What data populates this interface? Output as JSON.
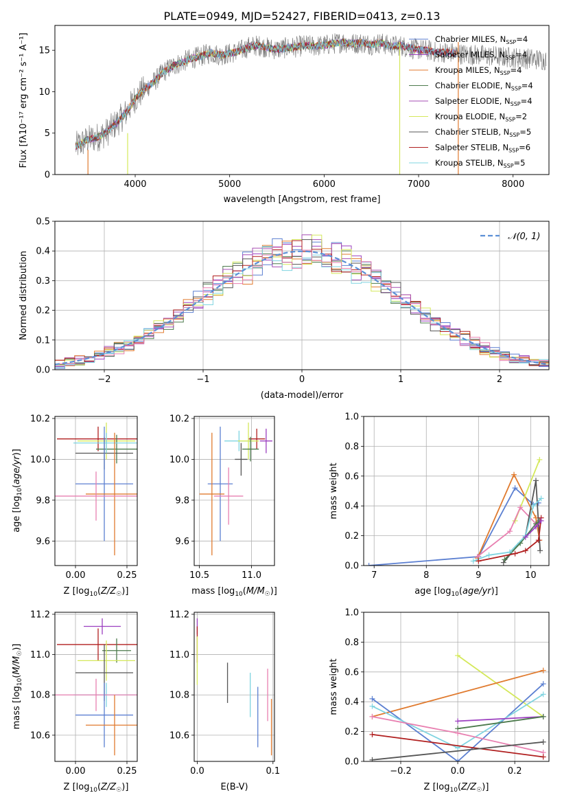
{
  "title": "PLATE=0949, MJD=52427, FIBERID=0413, z=0.13",
  "colors": {
    "chabrier_miles": "#5b7fd1",
    "salpeter_miles": "#9b3fbf",
    "kroupa_miles": "#e07a2e",
    "chabrier_elodie": "#4c7a4c",
    "salpeter_elodie": "#a64cb3",
    "kroupa_elodie": "#d4e85a",
    "chabrier_stelib": "#555555",
    "salpeter_stelib": "#b01e1e",
    "kroupa_stelib": "#7fd4e0",
    "pink": "#e87fb0",
    "gaussian": "#5b8fd6",
    "grid": "#b0b0b0",
    "spectrum": "#808080"
  },
  "chart_data": [
    {
      "id": "spectrum",
      "type": "line",
      "xlabel": "wavelength [Angstrom, rest frame]",
      "ylabel": "Flux [f",
      "ylabel_full": "Flux [fλ10⁻¹⁷ erg cm⁻² s⁻¹ A⁻¹]",
      "xlim": [
        3150,
        8380
      ],
      "ylim": [
        0,
        18
      ],
      "xticks": [
        "4000",
        "5000",
        "6000",
        "7000",
        "8000"
      ],
      "yticks": [
        "0",
        "5",
        "10",
        "15"
      ],
      "legend": [
        "Chabrier MILES, N_SSP=4",
        "Salpeter MILES, N_SSP=4",
        "Kroupa MILES, N_SSP=4",
        "Chabrier ELODIE, N_SSP=4",
        "Salpeter ELODIE, N_SSP=4",
        "Kroupa ELODIE, N_SSP=2",
        "Chabrier STELIB, N_SSP=5",
        "Salpeter STELIB, N_SSP=6",
        "Kroupa STELIB, N_SSP=5"
      ],
      "legend_html": [
        "Chabrier MILES, N<sub>SSP</sub>=4",
        "Salpeter MILES, N<sub>SSP</sub>=4",
        "Kroupa MILES, N<sub>SSP</sub>=4",
        "Chabrier ELODIE, N<sub>SSP</sub>=4",
        "Salpeter ELODIE, N<sub>SSP</sub>=4",
        "Kroupa ELODIE, N<sub>SSP</sub>=2",
        "Chabrier STELIB, N<sub>SSP</sub>=5",
        "Salpeter STELIB, N<sub>SSP</sub>=6",
        "Kroupa STELIB, N<sub>SSP</sub>=5"
      ],
      "continuum": {
        "x": [
          3370,
          3500,
          3600,
          3700,
          3800,
          3900,
          4000,
          4100,
          4200,
          4300,
          4400,
          4500,
          4600,
          4700,
          4800,
          4900,
          5000,
          5100,
          5200,
          5300,
          5400,
          5500,
          5600,
          5700,
          5800,
          5900,
          6000,
          6100,
          6200,
          6300,
          6400,
          6500,
          6600,
          6700,
          6800,
          6900,
          7000,
          7100,
          7200,
          7300,
          7400
        ],
        "y": [
          3.4,
          4.2,
          4.5,
          5.1,
          6.2,
          7.4,
          9.2,
          10.3,
          11.2,
          12.4,
          13.1,
          13.6,
          14.0,
          14.3,
          14.7,
          14.4,
          14.6,
          14.9,
          15.4,
          15.6,
          15.3,
          15.1,
          15.3,
          15.4,
          15.6,
          15.5,
          15.6,
          15.8,
          16.0,
          15.8,
          15.9,
          15.7,
          15.9,
          15.5,
          15.6,
          15.3,
          15.1,
          15.0,
          14.7,
          14.8,
          14.6
        ]
      },
      "data_extent": [
        3370,
        8350
      ]
    },
    {
      "id": "residuals",
      "type": "step",
      "xlabel": "(data-model)/error",
      "ylabel": "Normed distribution",
      "xlim": [
        -2.5,
        2.5
      ],
      "ylim": [
        0,
        0.5
      ],
      "xticks": [
        "−2",
        "−1",
        "0",
        "1",
        "2"
      ],
      "yticks": [
        "0.0",
        "0.1",
        "0.2",
        "0.3",
        "0.4",
        "0.5"
      ],
      "legend": [
        "𝒩(0, 1)"
      ],
      "bin_width": 0.1
    },
    {
      "id": "age_vs_Z",
      "type": "errorbar",
      "xlabel": "Z [log",
      "ylabel": "age  [log",
      "xlabel_html": "Z [log<tspan font-size='9' dy='3'>10</tspan><tspan dy='-3'>(</tspan><tspan font-style='italic'>Z/Z</tspan><tspan font-size='9' dy='3'>☉</tspan><tspan dy='-3'>)]</tspan>",
      "xlim": [
        -0.1,
        0.3
      ],
      "ylim": [
        9.48,
        10.21
      ],
      "xticks": [
        "0.00",
        "0.25"
      ],
      "yticks": [
        "9.6",
        "9.8",
        "10.0",
        "10.2"
      ],
      "points": [
        {
          "color": "salpeter_stelib",
          "x": 0.11,
          "xerr": 0.2,
          "y": 10.1,
          "yerr": 0.06
        },
        {
          "color": "kroupa_elodie",
          "x": 0.15,
          "xerr": 0.14,
          "y": 10.09,
          "yerr": 0.09
        },
        {
          "color": "chabrier_elodie",
          "x": 0.2,
          "xerr": 0.1,
          "y": 10.05,
          "yerr": 0.07
        },
        {
          "color": "chabrier_stelib",
          "x": 0.14,
          "xerr": 0.14,
          "y": 10.03,
          "yerr": 0.08
        },
        {
          "color": "kroupa_stelib",
          "x": 0.15,
          "xerr": 0.16,
          "y": 10.08,
          "yerr": 0.05
        },
        {
          "color": "chabrier_miles",
          "x": 0.14,
          "xerr": 0.14,
          "y": 9.88,
          "yerr": 0.28
        },
        {
          "color": "kroupa_miles",
          "x": 0.19,
          "xerr": 0.14,
          "y": 9.83,
          "yerr": 0.3
        },
        {
          "color": "pink",
          "x": 0.1,
          "xerr": 0.2,
          "y": 9.82,
          "yerr": 0.12
        }
      ]
    },
    {
      "id": "age_vs_mass",
      "type": "errorbar",
      "xlabel": "mass [log",
      "xlim": [
        10.45,
        11.22
      ],
      "ylim": [
        9.48,
        10.21
      ],
      "xticks": [
        "10.5",
        "11.0"
      ],
      "yticks": [
        "9.6",
        "9.8",
        "10.0",
        "10.2"
      ],
      "points": [
        {
          "color": "kroupa_stelib",
          "x": 10.88,
          "xerr": 0.14,
          "y": 10.09,
          "yerr": 0.05
        },
        {
          "color": "salpeter_stelib",
          "x": 11.05,
          "xerr": 0.08,
          "y": 10.1,
          "yerr": 0.05
        },
        {
          "color": "salpeter_miles",
          "x": 11.14,
          "xerr": 0.06,
          "y": 10.09,
          "yerr": 0.06
        },
        {
          "color": "kroupa_elodie",
          "x": 10.97,
          "xerr": 0.1,
          "y": 10.09,
          "yerr": 0.09
        },
        {
          "color": "chabrier_elodie",
          "x": 10.99,
          "xerr": 0.08,
          "y": 10.05,
          "yerr": 0.06
        },
        {
          "color": "chabrier_stelib",
          "x": 10.9,
          "xerr": 0.06,
          "y": 10.0,
          "yerr": 0.08
        },
        {
          "color": "chabrier_miles",
          "x": 10.7,
          "xerr": 0.12,
          "y": 9.88,
          "yerr": 0.28
        },
        {
          "color": "kroupa_miles",
          "x": 10.62,
          "xerr": 0.12,
          "y": 9.83,
          "yerr": 0.3
        },
        {
          "color": "pink",
          "x": 10.78,
          "xerr": 0.14,
          "y": 9.82,
          "yerr": 0.14
        }
      ]
    },
    {
      "id": "mass_weight_vs_age",
      "type": "line",
      "xlabel": "age  [log",
      "ylabel": "mass weight",
      "xlim": [
        6.8,
        10.35
      ],
      "ylim": [
        0,
        1
      ],
      "xticks": [
        "7",
        "8",
        "9",
        "10"
      ],
      "yticks": [
        "0.0",
        "0.2",
        "0.4",
        "0.6",
        "0.8",
        "1.0"
      ],
      "series": [
        {
          "color": "chabrier_miles",
          "x": [
            6.9,
            9.0,
            9.7,
            10.05,
            10.15
          ],
          "y": [
            0.0,
            0.06,
            0.52,
            0.41,
            0.42
          ]
        },
        {
          "color": "kroupa_miles",
          "x": [
            8.98,
            9.68,
            10.1,
            10.17
          ],
          "y": [
            0.05,
            0.61,
            0.32,
            0.17
          ]
        },
        {
          "color": "kroupa_elodie",
          "x": [
            9.7,
            10.17
          ],
          "y": [
            0.3,
            0.71
          ]
        },
        {
          "color": "pink",
          "x": [
            8.98,
            9.6,
            9.8,
            10.1,
            10.18
          ],
          "y": [
            0.06,
            0.23,
            0.39,
            0.28,
            0.3
          ]
        },
        {
          "color": "chabrier_stelib",
          "x": [
            9.48,
            9.9,
            10.1,
            10.18
          ],
          "y": [
            0.02,
            0.2,
            0.57,
            0.1
          ]
        },
        {
          "color": "chabrier_elodie",
          "x": [
            9.5,
            9.8,
            10.1,
            10.17
          ],
          "y": [
            0.04,
            0.15,
            0.28,
            0.3
          ]
        },
        {
          "color": "kroupa_stelib",
          "x": [
            8.9,
            9.2,
            9.6,
            9.9,
            10.05,
            10.2
          ],
          "y": [
            0.03,
            0.07,
            0.09,
            0.2,
            0.4,
            0.45
          ]
        },
        {
          "color": "salpeter_stelib",
          "x": [
            9.0,
            9.7,
            9.9,
            10.15,
            10.2
          ],
          "y": [
            0.03,
            0.08,
            0.1,
            0.17,
            0.32
          ]
        },
        {
          "color": "salpeter_miles",
          "x": [
            9.9,
            10.1,
            10.2
          ],
          "y": [
            0.19,
            0.26,
            0.3
          ]
        }
      ]
    },
    {
      "id": "mass_vs_Z",
      "type": "errorbar",
      "xlabel": "Z [log",
      "ylabel": "mass [log",
      "xlim": [
        -0.1,
        0.3
      ],
      "ylim": [
        10.47,
        11.21
      ],
      "xticks": [
        "0.00",
        "0.25"
      ],
      "yticks": [
        "10.6",
        "10.8",
        "11.0",
        "11.2"
      ],
      "points": [
        {
          "color": "salpeter_miles",
          "x": 0.13,
          "xerr": 0.09,
          "y": 11.14,
          "yerr": 0.04
        },
        {
          "color": "salpeter_stelib",
          "x": 0.11,
          "xerr": 0.2,
          "y": 11.05,
          "yerr": 0.08
        },
        {
          "color": "chabrier_elodie",
          "x": 0.2,
          "xerr": 0.07,
          "y": 11.02,
          "yerr": 0.06
        },
        {
          "color": "kroupa_elodie",
          "x": 0.15,
          "xerr": 0.14,
          "y": 10.97,
          "yerr": 0.1
        },
        {
          "color": "chabrier_stelib",
          "x": 0.14,
          "xerr": 0.14,
          "y": 10.91,
          "yerr": 0.14
        },
        {
          "color": "kroupa_stelib",
          "x": 0.15,
          "xerr": 0.16,
          "y": 10.8,
          "yerr": 0.06
        },
        {
          "color": "pink",
          "x": 0.1,
          "xerr": 0.2,
          "y": 10.8,
          "yerr": 0.08
        },
        {
          "color": "chabrier_miles",
          "x": 0.14,
          "xerr": 0.14,
          "y": 10.7,
          "yerr": 0.16
        },
        {
          "color": "kroupa_miles",
          "x": 0.19,
          "xerr": 0.14,
          "y": 10.65,
          "yerr": 0.15
        }
      ]
    },
    {
      "id": "mass_vs_EBV",
      "type": "errorbar",
      "xlabel": "E(B-V)",
      "xlim": [
        -0.004,
        0.102
      ],
      "ylim": [
        10.47,
        11.21
      ],
      "xticks": [
        "0.0",
        "0.1"
      ],
      "yticks": [
        "10.6",
        "10.8",
        "11.0",
        "11.2"
      ],
      "points": [
        {
          "color": "salpeter_miles",
          "x": 0.0,
          "xerr": 0,
          "y": 11.14,
          "yerr": 0.04
        },
        {
          "color": "salpeter_stelib",
          "x": 0.0,
          "xerr": 0,
          "y": 11.05,
          "yerr": 0.09
        },
        {
          "color": "kroupa_elodie",
          "x": 0.0,
          "xerr": 0,
          "y": 10.97,
          "yerr": 0.12
        },
        {
          "color": "chabrier_stelib",
          "x": 0.04,
          "xerr": 0,
          "y": 10.86,
          "yerr": 0.1
        },
        {
          "color": "kroupa_stelib",
          "x": 0.07,
          "xerr": 0,
          "y": 10.8,
          "yerr": 0.11
        },
        {
          "color": "chabrier_miles",
          "x": 0.08,
          "xerr": 0,
          "y": 10.69,
          "yerr": 0.15
        },
        {
          "color": "pink",
          "x": 0.093,
          "xerr": 0,
          "y": 10.8,
          "yerr": 0.13
        },
        {
          "color": "kroupa_miles",
          "x": 0.098,
          "xerr": 0,
          "y": 10.64,
          "yerr": 0.14
        }
      ]
    },
    {
      "id": "mass_weight_vs_Z",
      "type": "line",
      "xlabel": "Z [log",
      "ylabel": "mass weight",
      "xlim": [
        -0.33,
        0.32
      ],
      "ylim": [
        0,
        1
      ],
      "xticks": [
        "−0.2",
        "0.0",
        "0.2"
      ],
      "yticks": [
        "0.0",
        "0.2",
        "0.4",
        "0.6",
        "0.8",
        "1.0"
      ],
      "series": [
        {
          "color": "kroupa_elodie",
          "x": [
            0.0,
            0.3
          ],
          "y": [
            0.71,
            0.3
          ]
        },
        {
          "color": "kroupa_miles",
          "x": [
            -0.3,
            0.3
          ],
          "y": [
            0.3,
            0.61
          ]
        },
        {
          "color": "chabrier_miles",
          "x": [
            -0.3,
            0.0,
            0.3
          ],
          "y": [
            0.42,
            0.0,
            0.52
          ]
        },
        {
          "color": "kroupa_stelib",
          "x": [
            -0.3,
            0.0,
            0.3
          ],
          "y": [
            0.37,
            0.09,
            0.45
          ]
        },
        {
          "color": "salpeter_miles",
          "x": [
            0.0,
            0.3
          ],
          "y": [
            0.27,
            0.3
          ]
        },
        {
          "color": "chabrier_elodie",
          "x": [
            0.0,
            0.3
          ],
          "y": [
            0.22,
            0.3
          ]
        },
        {
          "color": "pink",
          "x": [
            -0.3,
            0.0,
            0.3
          ],
          "y": [
            0.3,
            0.19,
            0.06
          ]
        },
        {
          "color": "salpeter_stelib",
          "x": [
            -0.3,
            0.3
          ],
          "y": [
            0.18,
            0.03
          ]
        },
        {
          "color": "chabrier_stelib",
          "x": [
            -0.3,
            0.3
          ],
          "y": [
            0.01,
            0.13
          ]
        }
      ]
    }
  ]
}
